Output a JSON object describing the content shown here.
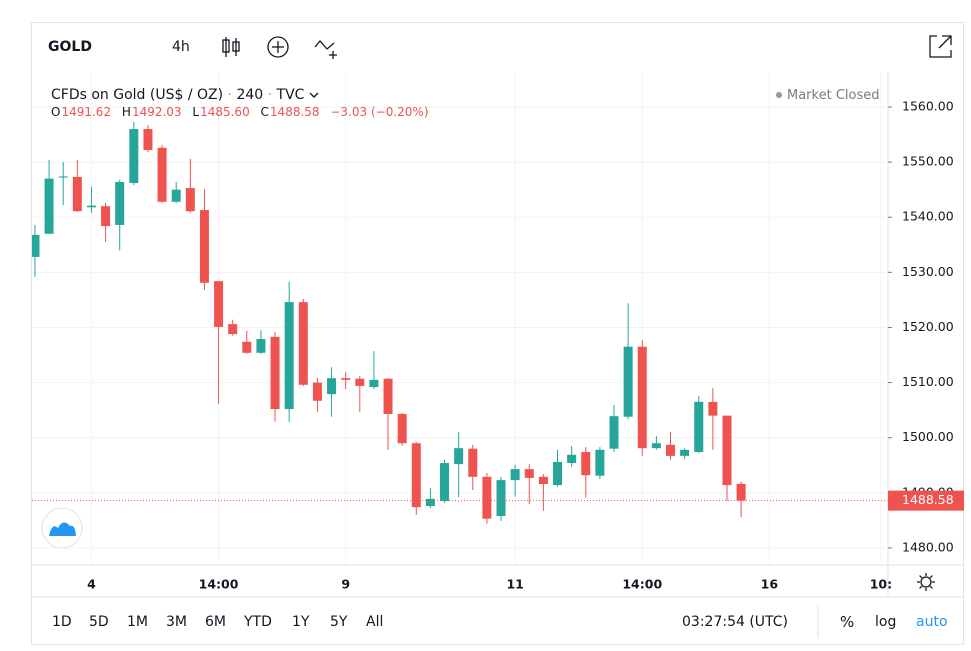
{
  "header": {
    "symbol": "GOLD",
    "interval": "4h"
  },
  "legend": {
    "title": "CFDs on Gold (US$ / OZ)",
    "separator": "·",
    "resolution": "240",
    "source": "TVC",
    "status": "Market Closed",
    "open_label": "O",
    "open": "1491.62",
    "high_label": "H",
    "high": "1492.03",
    "low_label": "L",
    "low": "1485.60",
    "close_label": "C",
    "close": "1488.58",
    "change": "−3.03 (−0.20%)"
  },
  "chart_data": {
    "type": "candlestick",
    "up_color": "#26a69a",
    "down_color": "#ef5350",
    "open": [
      1532.8,
      1537.0,
      1547.2,
      1547.3,
      1541.8,
      1542.0,
      1538.6,
      1546.2,
      1556.0,
      1552.6,
      1542.8,
      1545.3,
      1541.3,
      1528.4,
      1520.6,
      1517.4,
      1515.4,
      1518.3,
      1505.2,
      1524.6,
      1510.0,
      1507.9,
      1510.8,
      1510.7,
      1509.2,
      1510.7,
      1504.3,
      1499.0,
      1487.6,
      1488.5,
      1495.2,
      1498.0,
      1492.9,
      1485.8,
      1492.3,
      1494.3,
      1492.9,
      1491.4,
      1495.4,
      1497.4,
      1493.1,
      1498.0,
      1503.8,
      1516.5,
      1498.1,
      1498.7,
      1496.7,
      1497.4,
      1506.5,
      1504.0,
      1491.62
    ],
    "high": [
      1538.6,
      1550.4,
      1550.0,
      1550.4,
      1545.5,
      1542.6,
      1546.8,
      1557.3,
      1556.7,
      1553.1,
      1546.4,
      1550.6,
      1545.1,
      1528.4,
      1521.4,
      1519.4,
      1519.5,
      1519.2,
      1528.3,
      1525.2,
      1510.8,
      1512.8,
      1511.9,
      1511.2,
      1515.7,
      1510.8,
      1504.5,
      1499.2,
      1490.9,
      1496.0,
      1501.0,
      1498.7,
      1493.6,
      1492.9,
      1495.1,
      1495.2,
      1493.4,
      1497.8,
      1498.5,
      1498.3,
      1498.3,
      1505.9,
      1524.4,
      1517.7,
      1500.3,
      1501.0,
      1498.1,
      1507.6,
      1509.0,
      1504.0,
      1492.03
    ],
    "low": [
      1529.2,
      1537.0,
      1542.2,
      1541.0,
      1540.8,
      1535.5,
      1534.0,
      1545.8,
      1551.8,
      1542.6,
      1542.6,
      1540.8,
      1526.8,
      1506.1,
      1518.5,
      1515.2,
      1515.2,
      1502.9,
      1502.9,
      1509.4,
      1504.7,
      1503.8,
      1508.8,
      1504.7,
      1508.8,
      1497.8,
      1498.5,
      1486.0,
      1487.2,
      1488.2,
      1489.2,
      1490.5,
      1484.4,
      1484.9,
      1489.3,
      1488.0,
      1486.7,
      1491.1,
      1494.7,
      1489.1,
      1492.5,
      1497.4,
      1503.4,
      1496.7,
      1497.8,
      1496.0,
      1496.1,
      1497.2,
      1497.8,
      1488.5,
      1485.6
    ],
    "close": [
      1536.8,
      1547.0,
      1547.4,
      1541.1,
      1542.1,
      1538.4,
      1546.4,
      1556.0,
      1552.2,
      1542.8,
      1545.0,
      1541.1,
      1528.1,
      1520.1,
      1518.8,
      1515.4,
      1517.9,
      1505.2,
      1524.6,
      1509.6,
      1506.7,
      1510.8,
      1510.5,
      1509.4,
      1510.5,
      1504.3,
      1499.0,
      1487.4,
      1488.9,
      1495.4,
      1498.1,
      1492.9,
      1485.3,
      1492.3,
      1494.3,
      1492.7,
      1491.6,
      1495.6,
      1496.9,
      1493.2,
      1497.8,
      1503.9,
      1516.5,
      1498.1,
      1499.0,
      1496.7,
      1497.8,
      1506.5,
      1504.0,
      1491.4,
      1488.58
    ],
    "xlim": [
      -0.21,
      60.4
    ],
    "xticks": [
      {
        "value": 4,
        "label": "4"
      },
      {
        "value": 13,
        "label": "14:00"
      },
      {
        "value": 22,
        "label": "9"
      },
      {
        "value": 34,
        "label": "11"
      },
      {
        "value": 43,
        "label": "14:00"
      },
      {
        "value": 52,
        "label": "16"
      },
      {
        "value": 59.9,
        "label": "10:"
      }
    ],
    "ylim": [
      1476.9,
      1566.35
    ],
    "yticks": [
      {
        "value": 1480,
        "label": "1480.00"
      },
      {
        "value": 1490,
        "label": "1490.00"
      },
      {
        "value": 1500,
        "label": "1500.00"
      },
      {
        "value": 1510,
        "label": "1510.00"
      },
      {
        "value": 1520,
        "label": "1520.00"
      },
      {
        "value": 1530,
        "label": "1530.00"
      },
      {
        "value": 1540,
        "label": "1540.00"
      },
      {
        "value": 1550,
        "label": "1550.00"
      },
      {
        "value": 1560,
        "label": "1560.00"
      }
    ],
    "grid": true,
    "last_price": {
      "value": 1488.58,
      "label": "1488.58"
    },
    "log_scale": false,
    "auto_scale": true
  },
  "footer": {
    "ranges": [
      "1D",
      "5D",
      "1M",
      "3M",
      "6M",
      "YTD",
      "1Y",
      "5Y",
      "All"
    ],
    "time": "03:27:54 (UTC)",
    "percent": "%",
    "log": "log",
    "auto": "auto"
  }
}
